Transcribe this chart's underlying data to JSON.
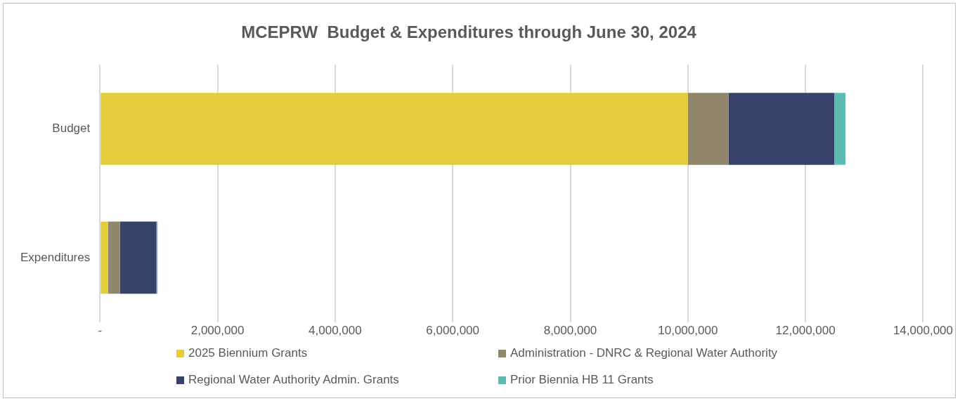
{
  "chart_data": {
    "type": "bar",
    "orientation": "horizontal",
    "stacked": true,
    "title": "MCEPRW  Budget & Expenditures through June 30, 2024",
    "categories": [
      "Budget",
      "Expenditures"
    ],
    "series": [
      {
        "name": "2025 Biennium Grants",
        "color": "#e3cd3b",
        "values": [
          10000000,
          140000
        ]
      },
      {
        "name": "Administration - DNRC & Regional Water Authority",
        "color": "#90866c",
        "values": [
          690000,
          200000
        ]
      },
      {
        "name": "Regional Water Authority Admin. Grants",
        "color": "#36426a",
        "values": [
          1800000,
          620000
        ]
      },
      {
        "name": "Prior Biennia HB 11 Grants",
        "color": "#5ebcb1",
        "values": [
          190000,
          20000
        ]
      }
    ],
    "xlim": [
      0,
      14000000
    ],
    "xticks": [
      {
        "value": 0,
        "label": "-"
      },
      {
        "value": 2000000,
        "label": "2,000,000"
      },
      {
        "value": 4000000,
        "label": "4,000,000"
      },
      {
        "value": 6000000,
        "label": "6,000,000"
      },
      {
        "value": 8000000,
        "label": "8,000,000"
      },
      {
        "value": 10000000,
        "label": "10,000,000"
      },
      {
        "value": 12000000,
        "label": "12,000,000"
      },
      {
        "value": 14000000,
        "label": "14,000,000"
      }
    ],
    "grid": "x",
    "legend": "bottom"
  }
}
